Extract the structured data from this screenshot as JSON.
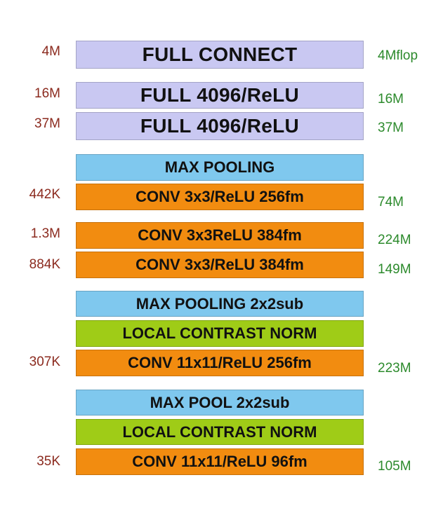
{
  "layers": [
    {
      "label": "FULL CONNECT",
      "kind": "fc",
      "params": "4M",
      "flops": "4Mflop"
    },
    {
      "label": "FULL 4096/ReLU",
      "kind": "fc",
      "params": "16M",
      "flops": "16M"
    },
    {
      "label": "FULL 4096/ReLU",
      "kind": "fc",
      "params": "37M",
      "flops": "37M"
    },
    {
      "label": "MAX POOLING",
      "kind": "pool",
      "params": "",
      "flops": ""
    },
    {
      "label": "CONV 3x3/ReLU 256fm",
      "kind": "conv",
      "params": "442K",
      "flops": "74M"
    },
    {
      "label": "CONV 3x3ReLU 384fm",
      "kind": "conv",
      "params": "1.3M",
      "flops": "224M"
    },
    {
      "label": "CONV 3x3/ReLU 384fm",
      "kind": "conv",
      "params": "884K",
      "flops": "149M"
    },
    {
      "label": "MAX POOLING 2x2sub",
      "kind": "pool",
      "params": "",
      "flops": ""
    },
    {
      "label": "LOCAL CONTRAST NORM",
      "kind": "norm",
      "params": "",
      "flops": ""
    },
    {
      "label": "CONV 11x11/ReLU 256fm",
      "kind": "conv",
      "params": "307K",
      "flops": "223M"
    },
    {
      "label": "MAX POOL 2x2sub",
      "kind": "pool",
      "params": "",
      "flops": ""
    },
    {
      "label": "LOCAL CONTRAST NORM",
      "kind": "norm",
      "params": "",
      "flops": ""
    },
    {
      "label": "CONV 11x11/ReLU 96fm",
      "kind": "conv",
      "params": "35K",
      "flops": "105M"
    }
  ],
  "colors": {
    "fc": "#c9c8f2",
    "pool": "#7fc8ee",
    "conv": "#f28c10",
    "norm": "#9fcc17",
    "param_text": "#8b2a1e",
    "flop_text": "#2c8a2c"
  }
}
